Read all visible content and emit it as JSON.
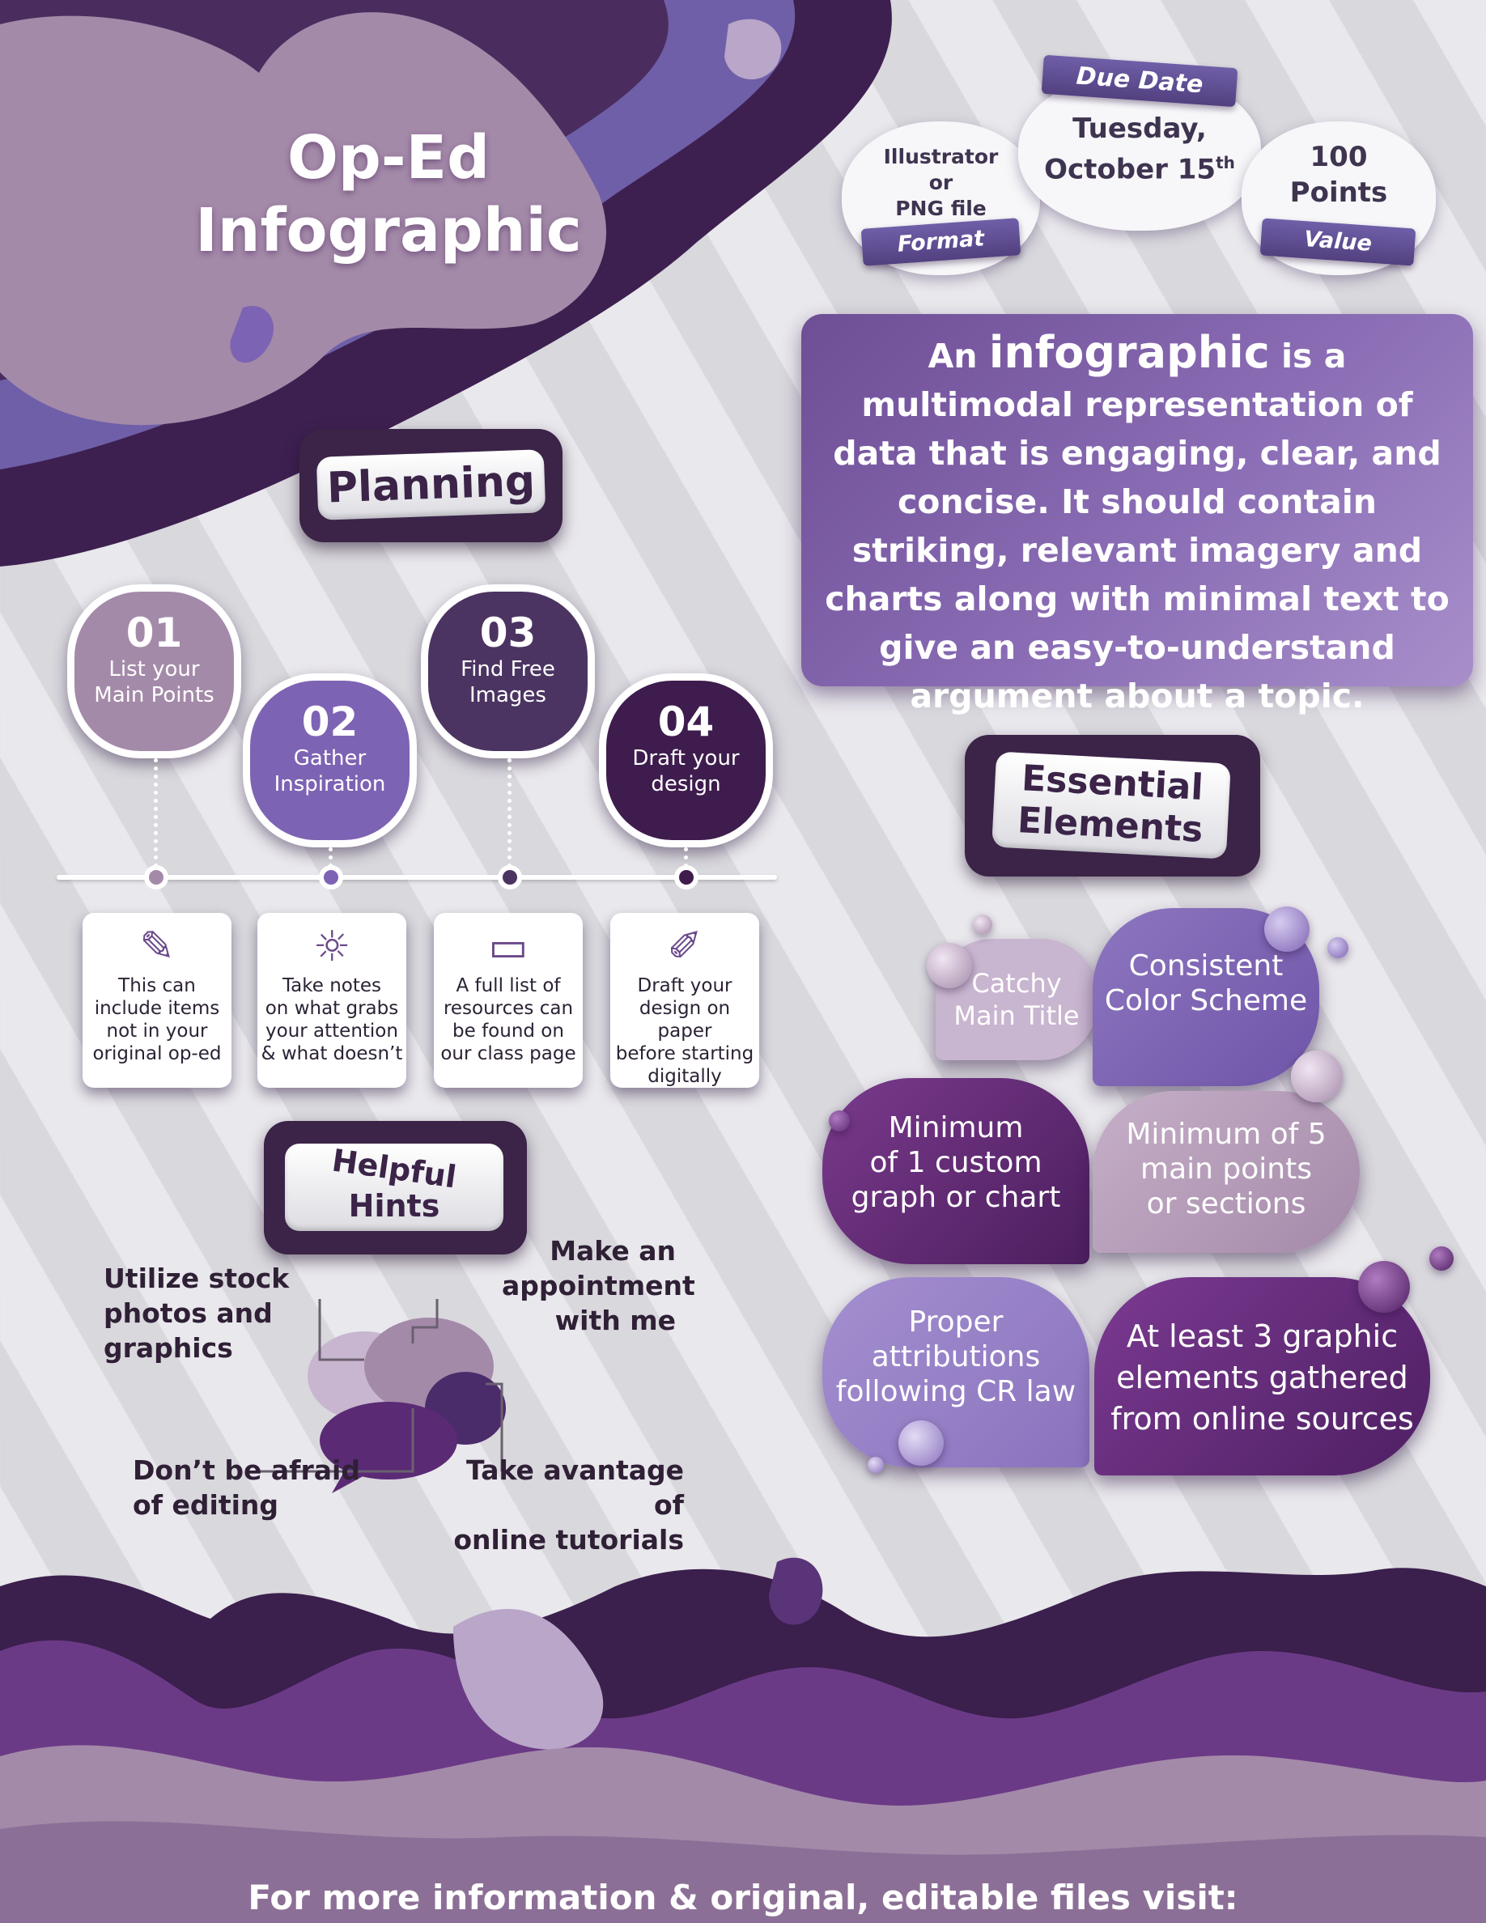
{
  "title": {
    "line1": "Op-Ed",
    "line2": "Infographic"
  },
  "format": {
    "text_lines": [
      "Illustrator",
      "or",
      "PNG file"
    ],
    "ribbon": "Format"
  },
  "due": {
    "ribbon": "Due Date",
    "line1": "Tuesday,",
    "line2": "October 15",
    "sup": "th"
  },
  "value": {
    "line1": "100",
    "line2": "Points",
    "ribbon": "Value"
  },
  "definition": {
    "lead": "An",
    "term": "infographic",
    "body": "is a multimodal representation of data that is engaging, clear, and concise. It should contain striking, relevant imagery and charts along with minimal text to give an easy-to-understand argument about a topic."
  },
  "planning": {
    "header": "Planning",
    "steps": [
      {
        "num": "01",
        "label_lines": [
          "List your",
          "Main Points"
        ],
        "note_lines": [
          "This can",
          "include items",
          "not in your",
          "original op-ed"
        ],
        "icon": "pencil-paper-icon",
        "glyph": "✎",
        "color": "#a48aa9"
      },
      {
        "num": "02",
        "label_lines": [
          "Gather",
          "Inspiration"
        ],
        "note_lines": [
          "Take notes",
          "on what grabs",
          "your attention",
          "& what doesn’t"
        ],
        "icon": "lightbulb-head-icon",
        "glyph": "☼",
        "color": "#7d63b3"
      },
      {
        "num": "03",
        "label_lines": [
          "Find Free",
          "Images"
        ],
        "note_lines": [
          "A full list of",
          "resources can",
          "be found on",
          "our class page"
        ],
        "icon": "laptop-icon",
        "glyph": "▭",
        "color": "#4b3462"
      },
      {
        "num": "04",
        "label_lines": [
          "Draft your",
          "design"
        ],
        "note_lines": [
          "Draft your",
          "design on paper",
          "before starting",
          "digitally"
        ],
        "icon": "pencil-cup-icon",
        "glyph": "✐",
        "color": "#3e1c4d"
      }
    ]
  },
  "hints": {
    "header_lines": [
      "Helpful",
      "Hints"
    ],
    "items": [
      {
        "lines": [
          "Utilize stock",
          "photos and",
          "graphics"
        ]
      },
      {
        "lines": [
          "Make an",
          "appointment",
          "with me"
        ]
      },
      {
        "lines": [
          "Don’t be afraid",
          "of editing"
        ]
      },
      {
        "lines": [
          "Take avantage of",
          "online tutorials"
        ]
      }
    ]
  },
  "essential": {
    "header_lines": [
      "Essential",
      "Elements"
    ],
    "items": [
      {
        "lines": [
          "Catchy",
          "Main Title"
        ]
      },
      {
        "lines": [
          "Consistent",
          "Color Scheme"
        ]
      },
      {
        "lines": [
          "Minimum",
          "of 1 custom",
          "graph or chart"
        ]
      },
      {
        "lines": [
          "Minimum of 5",
          "main points",
          "or sections"
        ]
      },
      {
        "lines": [
          "Proper",
          "attributions",
          "following CR law"
        ]
      },
      {
        "lines": [
          "At least 3 graphic",
          "elements gathered",
          "from online sources"
        ]
      }
    ]
  },
  "footer": "For more information & original, editable files visit: meganfavaro.wixsite.com/website",
  "colors": {
    "dark": "#3b2448",
    "violet": "#7d63b3",
    "mauve": "#a48aa9",
    "plum": "#6a2f78"
  }
}
